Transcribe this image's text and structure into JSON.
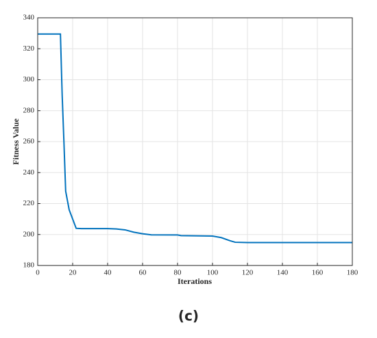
{
  "chart_data": {
    "type": "line",
    "x_label": "Iterations",
    "y_label": "Fitness Value",
    "caption": "(c)",
    "x": [
      0,
      13,
      14,
      15,
      16,
      18,
      20,
      22,
      25,
      40,
      45,
      50,
      55,
      60,
      65,
      80,
      82,
      100,
      105,
      110,
      113,
      120,
      180
    ],
    "series": [
      {
        "color": "#0072bd",
        "values": [
          329.5,
          329.5,
          290,
          260,
          228,
          216,
          210,
          204,
          203.8,
          203.8,
          203.6,
          203,
          201.5,
          200.5,
          199.8,
          199.7,
          199.3,
          199,
          198,
          196,
          195,
          194.8,
          194.8
        ]
      }
    ],
    "xlim": [
      0,
      180
    ],
    "xticks": [
      0,
      20,
      40,
      60,
      80,
      100,
      120,
      140,
      160,
      180
    ],
    "ylim": [
      180,
      340
    ],
    "yticks": [
      180,
      200,
      220,
      240,
      260,
      280,
      300,
      320,
      340
    ],
    "grid": true
  }
}
